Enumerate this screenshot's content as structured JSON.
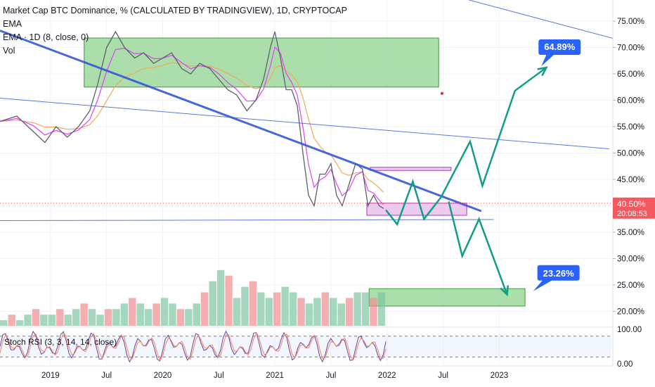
{
  "legend": {
    "title": "Market Cap BTC Dominance, % (CALCULATED BY TRADINGVIEW), 1D, CRYPTOCAP",
    "ema1": "EMA",
    "ema2": "EMA · 1D (8, close, 0)",
    "vol": "Vol",
    "stoch": "Stoch RSI (3, 3, 14, 14, close)"
  },
  "colors": {
    "price": "#5d606b",
    "ema_fast": "#e040fb",
    "ema_slow": "#f2a85c",
    "trend_blue": "#3456d8",
    "projection": "#129e86",
    "zone_green": "#8fd38f",
    "zone_purple": "#e5b3ea",
    "label_blue": "#2962ff",
    "price_label": "#f5585e",
    "vol_up": "#7fc4a3",
    "vol_down": "#ef8e8e",
    "stoch_k": "#6b3f9e",
    "stoch_d": "#f5845c"
  },
  "chart_data": {
    "type": "line",
    "title": "Market Cap BTC Dominance, % (CALCULATED BY TRADINGVIEW), 1D, CRYPTOCAP",
    "ylabel": "",
    "ylim": [
      17,
      79
    ],
    "y_ticks": [
      "75.00%",
      "70.00%",
      "65.00%",
      "60.00%",
      "55.00%",
      "50.00%",
      "45.00%",
      "40.00%",
      "35.00%",
      "30.00%",
      "25.00%",
      "20.00%"
    ],
    "y_tick_values": [
      75,
      70,
      65,
      60,
      55,
      50,
      45,
      40,
      35,
      30,
      25,
      20
    ],
    "x_ticks": [
      "2019",
      "Jul",
      "2020",
      "Jul",
      "2021",
      "Jul",
      "2022",
      "Jul",
      "2023"
    ],
    "x_tick_values": [
      2019.0,
      2019.5,
      2020.0,
      2020.5,
      2021.0,
      2021.5,
      2022.0,
      2022.5,
      2023.0
    ],
    "series": [
      {
        "x": [
          2018.55,
          2018.7,
          2018.85,
          2018.95,
          2019.05,
          2019.15,
          2019.25,
          2019.35,
          2019.42,
          2019.5,
          2019.58,
          2019.66,
          2019.75,
          2019.83,
          2019.92,
          2020.0,
          2020.08,
          2020.17,
          2020.25,
          2020.33,
          2020.42,
          2020.5,
          2020.58,
          2020.66,
          2020.75,
          2020.83,
          2020.9,
          2020.96,
          2021.0,
          2021.05,
          2021.1,
          2021.15,
          2021.2,
          2021.25,
          2021.3,
          2021.35,
          2021.4,
          2021.45,
          2021.5,
          2021.55,
          2021.6,
          2021.66,
          2021.72,
          2021.78,
          2021.83,
          2021.88,
          2021.93,
          2021.97
        ],
        "y": [
          56,
          57,
          54,
          52,
          55,
          53,
          55,
          58,
          63,
          70,
          73,
          70,
          68,
          69,
          67,
          68,
          69,
          66,
          65,
          67,
          66,
          64,
          62,
          61,
          58,
          60,
          64,
          70,
          73,
          68,
          62,
          62,
          59,
          50,
          42,
          40,
          46,
          46,
          48,
          42,
          40,
          44,
          48,
          47,
          40,
          42,
          40,
          39.5
        ]
      }
    ],
    "stat_labels": [
      {
        "text": "64.89%",
        "value": 64.89
      },
      {
        "text": "23.26%",
        "value": 23.26
      }
    ],
    "current_value": {
      "text": "40.50%",
      "value": 40.5,
      "countdown": "20:08:53"
    },
    "zones": [
      {
        "x": [
          2019.3,
          2022.46
        ],
        "y": [
          62.5,
          71.8
        ],
        "color": "green"
      },
      {
        "x": [
          2021.82,
          2022.71
        ],
        "y": [
          38.2,
          40.5
        ],
        "color": "purple"
      },
      {
        "x": [
          2021.85,
          2022.57
        ],
        "y": [
          46.7,
          47.3
        ],
        "color": "purple"
      },
      {
        "x": [
          2021.84,
          2023.23
        ],
        "y": [
          21.0,
          24.3
        ],
        "color": "green"
      }
    ],
    "trendlines": [
      {
        "x": [
          2018.55,
          2022.84
        ],
        "y": [
          73.2,
          39.0
        ],
        "width": 3
      },
      {
        "x": [
          2018.55,
          2023.98
        ],
        "y": [
          60.4,
          50.8
        ],
        "width": 1
      },
      {
        "x": [
          2021.85,
          2025.2
        ],
        "y": [
          84.0,
          65.0
        ],
        "width": 1
      },
      {
        "x": [
          2018.55,
          2022.95
        ],
        "y": [
          37.2,
          37.4
        ],
        "width": 1
      }
    ],
    "projections": [
      {
        "x": [
          2021.99,
          2022.09,
          2022.23,
          2022.33,
          2022.48,
          2022.74,
          2022.85,
          2023.14,
          2023.42
        ],
        "y": [
          39.2,
          36.5,
          44.6,
          37.5,
          41.6,
          52.2,
          43.8,
          61.8,
          66.2
        ]
      },
      {
        "x": [
          2022.55,
          2022.67,
          2022.82,
          2023.07
        ],
        "y": [
          40.8,
          30.5,
          37.5,
          23.2
        ]
      }
    ],
    "volume": {
      "values": [
        1,
        2,
        1,
        2,
        3,
        2,
        2,
        3,
        2,
        3,
        4,
        3,
        2,
        3,
        3,
        4,
        5,
        4,
        3,
        4,
        5,
        4,
        3,
        3,
        4,
        6,
        8,
        10,
        9,
        5,
        7,
        8,
        6,
        5,
        6,
        7,
        6,
        5,
        4,
        5,
        6,
        5,
        4,
        5,
        6,
        6,
        5,
        6
      ],
      "max": 12
    },
    "stoch_rsi": {
      "ylim": [
        0,
        100
      ],
      "ticks": [
        "100.00",
        "0.00"
      ],
      "bands": [
        20,
        80
      ]
    }
  }
}
